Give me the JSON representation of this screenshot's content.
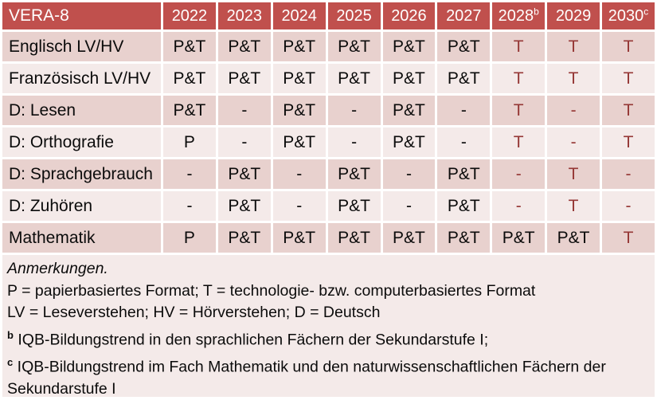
{
  "colors": {
    "header_bg": "#C0504D",
    "header_text": "#FFFFFF",
    "band_dark": "#E8D1CE",
    "band_light": "#F4EAE9",
    "accent_text": "#953735"
  },
  "table": {
    "title": "VERA-8",
    "columns": [
      {
        "label": "2022",
        "sup": ""
      },
      {
        "label": "2023",
        "sup": ""
      },
      {
        "label": "2024",
        "sup": ""
      },
      {
        "label": "2025",
        "sup": ""
      },
      {
        "label": "2026",
        "sup": ""
      },
      {
        "label": "2027",
        "sup": ""
      },
      {
        "label": "2028",
        "sup": "b"
      },
      {
        "label": "2029",
        "sup": ""
      },
      {
        "label": "2030",
        "sup": "c"
      }
    ],
    "rows": [
      {
        "label": "Englisch LV/HV",
        "cells": [
          {
            "t": "P&T",
            "red": false
          },
          {
            "t": "P&T",
            "red": false
          },
          {
            "t": "P&T",
            "red": false
          },
          {
            "t": "P&T",
            "red": false
          },
          {
            "t": "P&T",
            "red": false
          },
          {
            "t": "P&T",
            "red": false
          },
          {
            "t": "T",
            "red": true
          },
          {
            "t": "T",
            "red": true
          },
          {
            "t": "T",
            "red": true
          }
        ]
      },
      {
        "label": "Französisch LV/HV",
        "cells": [
          {
            "t": "P&T",
            "red": false
          },
          {
            "t": "P&T",
            "red": false
          },
          {
            "t": "P&T",
            "red": false
          },
          {
            "t": "P&T",
            "red": false
          },
          {
            "t": "P&T",
            "red": false
          },
          {
            "t": "P&T",
            "red": false
          },
          {
            "t": "T",
            "red": true
          },
          {
            "t": "T",
            "red": true
          },
          {
            "t": "T",
            "red": true
          }
        ]
      },
      {
        "label": "D: Lesen",
        "cells": [
          {
            "t": "P&T",
            "red": false
          },
          {
            "t": "-",
            "red": false
          },
          {
            "t": "P&T",
            "red": false
          },
          {
            "t": "-",
            "red": false
          },
          {
            "t": "P&T",
            "red": false
          },
          {
            "t": "-",
            "red": false
          },
          {
            "t": "T",
            "red": true
          },
          {
            "t": "-",
            "red": true
          },
          {
            "t": "T",
            "red": true
          }
        ]
      },
      {
        "label": "D: Orthografie",
        "cells": [
          {
            "t": "P",
            "red": false
          },
          {
            "t": "-",
            "red": false
          },
          {
            "t": "P&T",
            "red": false
          },
          {
            "t": "-",
            "red": false
          },
          {
            "t": "P&T",
            "red": false
          },
          {
            "t": "-",
            "red": false
          },
          {
            "t": "T",
            "red": true
          },
          {
            "t": "-",
            "red": true
          },
          {
            "t": "T",
            "red": true
          }
        ]
      },
      {
        "label": "D: Sprachgebrauch",
        "cells": [
          {
            "t": "-",
            "red": false
          },
          {
            "t": "P&T",
            "red": false
          },
          {
            "t": "-",
            "red": false
          },
          {
            "t": "P&T",
            "red": false
          },
          {
            "t": "-",
            "red": false
          },
          {
            "t": "P&T",
            "red": false
          },
          {
            "t": "-",
            "red": true
          },
          {
            "t": "T",
            "red": true
          },
          {
            "t": "-",
            "red": true
          }
        ]
      },
      {
        "label": "D: Zuhören",
        "cells": [
          {
            "t": "-",
            "red": false
          },
          {
            "t": "P&T",
            "red": false
          },
          {
            "t": "-",
            "red": false
          },
          {
            "t": "P&T",
            "red": false
          },
          {
            "t": "-",
            "red": false
          },
          {
            "t": "P&T",
            "red": false
          },
          {
            "t": "-",
            "red": true
          },
          {
            "t": "T",
            "red": true
          },
          {
            "t": "-",
            "red": true
          }
        ]
      },
      {
        "label": "Mathematik",
        "cells": [
          {
            "t": "P",
            "red": false
          },
          {
            "t": "P&T",
            "red": false
          },
          {
            "t": "P&T",
            "red": false
          },
          {
            "t": "P&T",
            "red": false
          },
          {
            "t": "P&T",
            "red": false
          },
          {
            "t": "P&T",
            "red": false
          },
          {
            "t": "P&T",
            "red": false
          },
          {
            "t": "P&T",
            "red": false
          },
          {
            "t": "T",
            "red": true
          }
        ]
      }
    ]
  },
  "notes": {
    "heading": "Anmerkungen.",
    "lines": [
      {
        "sup": "",
        "text": "P = papierbasiertes Format; T = technologie- bzw. computerbasiertes Format"
      },
      {
        "sup": "",
        "text": "LV = Leseverstehen; HV = Hörverstehen; D = Deutsch"
      },
      {
        "sup": "b",
        "text": "IQB-Bildungstrend in den sprachlichen Fächern der Sekundarstufe I;"
      },
      {
        "sup": "c",
        "text": "IQB-Bildungstrend im Fach Mathematik und den naturwissenschaftlichen Fächern der Sekundarstufe I"
      }
    ]
  }
}
